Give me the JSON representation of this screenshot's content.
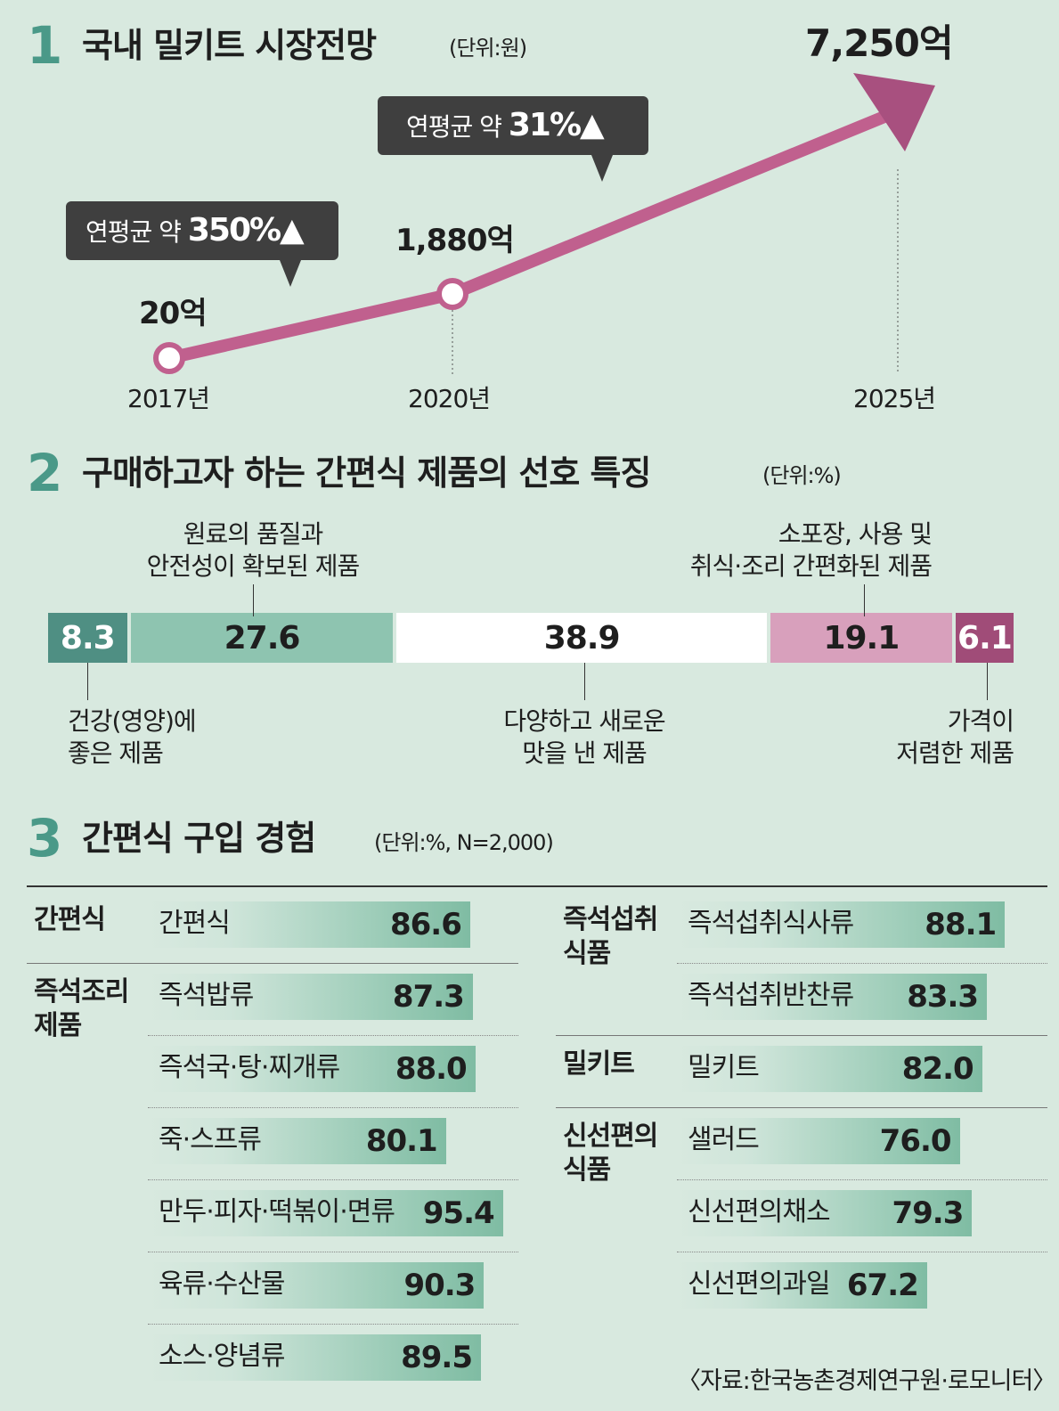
{
  "section1": {
    "num": "1",
    "title": "국내 밀키트 시장전망",
    "unit": "(단위:원)",
    "badges": [
      {
        "prefix": "연평균 약 ",
        "value": "350%▲"
      },
      {
        "prefix": "연평균 약 ",
        "value": "31%▲"
      }
    ]
  },
  "section2": {
    "num": "2",
    "title": "구매하고자 하는 간편식 제품의 선호 특징",
    "unit": "(단위:%)"
  },
  "section3": {
    "num": "3",
    "title": "간편식 구입 경험",
    "unit": "(단위:%, N=2,000)"
  },
  "source": "〈자료:한국농촌경제연구원·로모니터〉",
  "chart_data": [
    {
      "type": "line",
      "title": "국내 밀키트 시장전망",
      "unit": "(단위:원)",
      "x": [
        "2017년",
        "2020년",
        "2025년"
      ],
      "values": [
        20,
        1880,
        7250
      ],
      "labels": [
        "20억",
        "1,880억",
        "7,250억"
      ],
      "annotations": [
        "연평균 약 350%▲",
        "연평균 약 31%▲"
      ],
      "colors": {
        "line": "#c0608e"
      }
    },
    {
      "type": "bar",
      "title": "구매하고자 하는 간편식 제품의 선호 특징",
      "unit": "(단위:%)",
      "stacked": true,
      "segments": [
        {
          "label_lines": [
            "건강(영양)에",
            "좋은 제품"
          ],
          "value": 8.3,
          "display": "8.3",
          "color": "#4f8f83",
          "text_color": "#ffffff"
        },
        {
          "label_lines": [
            "원료의 품질과",
            "안전성이 확보된 제품"
          ],
          "value": 27.6,
          "display": "27.6",
          "color": "#8ec4b0",
          "text_color": "#1e1e1e"
        },
        {
          "label_lines": [
            "다양하고 새로운",
            "맛을 낸 제품"
          ],
          "value": 38.9,
          "display": "38.9",
          "color": "#ffffff",
          "text_color": "#1e1e1e"
        },
        {
          "label_lines": [
            "소포장, 사용 및",
            "취식·조리 간편화된 제품"
          ],
          "value": 19.1,
          "display": "19.1",
          "color": "#d8a0bc",
          "text_color": "#1e1e1e"
        },
        {
          "label_lines": [
            "가격이",
            "저렴한 제품"
          ],
          "value": 6.1,
          "display": "6.1",
          "color": "#a04c78",
          "text_color": "#ffffff"
        }
      ]
    },
    {
      "type": "bar",
      "orientation": "horizontal",
      "title": "간편식 구입 경험",
      "unit": "(단위:%, N=2,000)",
      "groups": [
        {
          "category_lines": [
            "간편식"
          ],
          "items": [
            {
              "label": "간편식",
              "value": 86.6,
              "display": "86.6"
            }
          ]
        },
        {
          "category_lines": [
            "즉석조리",
            "제품"
          ],
          "items": [
            {
              "label": "즉석밥류",
              "value": 87.3,
              "display": "87.3"
            },
            {
              "label": "즉석국·탕·찌개류",
              "value": 88.0,
              "display": "88.0"
            },
            {
              "label": "죽·스프류",
              "value": 80.1,
              "display": "80.1"
            },
            {
              "label": "만두·피자·떡볶이·면류",
              "value": 95.4,
              "display": "95.4"
            },
            {
              "label": "육류·수산물",
              "value": 90.3,
              "display": "90.3"
            },
            {
              "label": "소스·양념류",
              "value": 89.5,
              "display": "89.5"
            }
          ]
        },
        {
          "category_lines": [
            "즉석섭취",
            "식품"
          ],
          "items": [
            {
              "label": "즉석섭취식사류",
              "value": 88.1,
              "display": "88.1"
            },
            {
              "label": "즉석섭취반찬류",
              "value": 83.3,
              "display": "83.3"
            }
          ]
        },
        {
          "category_lines": [
            "밀키트"
          ],
          "items": [
            {
              "label": "밀키트",
              "value": 82.0,
              "display": "82.0"
            }
          ]
        },
        {
          "category_lines": [
            "신선편의",
            "식품"
          ],
          "items": [
            {
              "label": "샐러드",
              "value": 76.0,
              "display": "76.0"
            },
            {
              "label": "신선편의채소",
              "value": 79.3,
              "display": "79.3"
            },
            {
              "label": "신선편의과일",
              "value": 67.2,
              "display": "67.2"
            }
          ]
        }
      ]
    }
  ]
}
